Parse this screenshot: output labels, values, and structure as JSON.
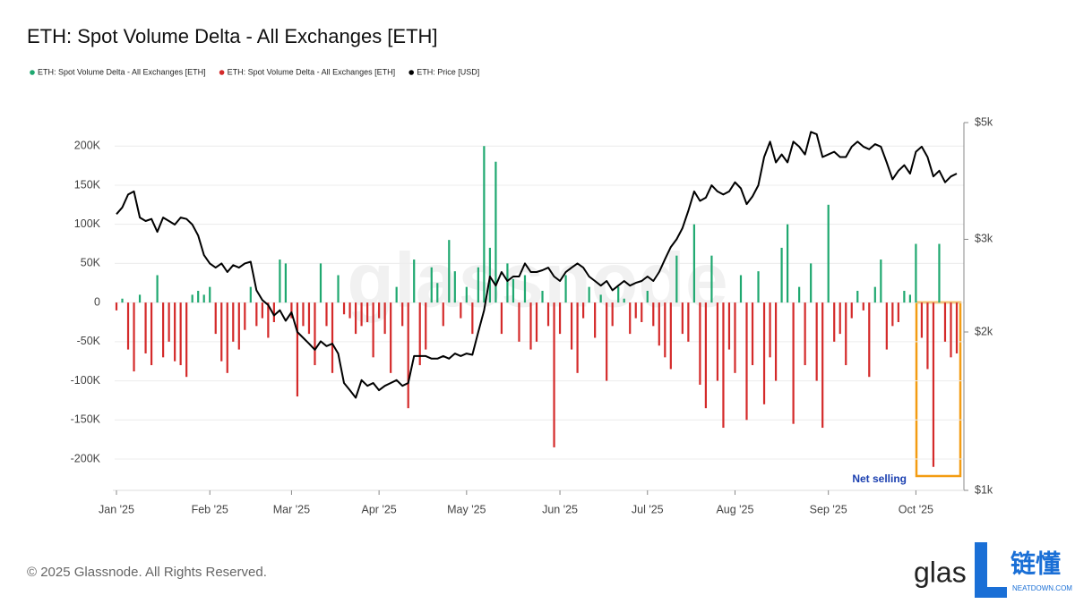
{
  "chart_data": {
    "type": "bar",
    "title": "ETH: Spot Volume Delta - All Exchanges [ETH]",
    "watermark": "glassnode",
    "annotation": "Net selling",
    "footer": "© 2025 Glassnode. All Rights Reserved.",
    "logo": {
      "brand": "glas",
      "mark": "链懂",
      "site": "NEATDOWN.COM"
    },
    "categories": [
      "Jan '25",
      null,
      null,
      null,
      null,
      null,
      null,
      null,
      null,
      null,
      null,
      null,
      null,
      null,
      null,
      null,
      "Feb '25",
      null,
      null,
      null,
      null,
      null,
      null,
      null,
      null,
      null,
      null,
      null,
      null,
      null,
      "Mar '25",
      null,
      null,
      null,
      null,
      null,
      null,
      null,
      null,
      null,
      null,
      null,
      null,
      null,
      null,
      "Apr '25",
      null,
      null,
      null,
      null,
      null,
      null,
      null,
      null,
      null,
      null,
      null,
      null,
      null,
      null,
      "May '25",
      null,
      null,
      null,
      null,
      null,
      null,
      null,
      null,
      null,
      null,
      null,
      null,
      null,
      null,
      null,
      "Jun '25",
      null,
      null,
      null,
      null,
      null,
      null,
      null,
      null,
      null,
      null,
      null,
      null,
      null,
      null,
      "Jul '25",
      null,
      null,
      null,
      null,
      null,
      null,
      null,
      null,
      null,
      null,
      null,
      null,
      null,
      null,
      "Aug '25",
      null,
      null,
      null,
      null,
      null,
      null,
      null,
      null,
      null,
      null,
      null,
      null,
      null,
      null,
      null,
      "Sep '25",
      null,
      null,
      null,
      null,
      null,
      null,
      null,
      null,
      null,
      null,
      null,
      null,
      null,
      null,
      "Oct '25",
      null,
      null,
      null,
      null,
      null,
      null,
      null
    ],
    "series": [
      {
        "name": "ETH: Spot Volume Delta - All Exchanges [ETH]",
        "color": "#1fa870",
        "values": [
          null,
          5000,
          null,
          null,
          10000,
          null,
          null,
          35000,
          null,
          null,
          null,
          null,
          null,
          10000,
          15000,
          10000,
          20000,
          null,
          null,
          null,
          null,
          null,
          null,
          20000,
          null,
          null,
          null,
          null,
          55000,
          50000,
          null,
          null,
          null,
          null,
          null,
          50000,
          null,
          null,
          35000,
          null,
          null,
          null,
          null,
          null,
          null,
          null,
          null,
          null,
          20000,
          null,
          null,
          55000,
          null,
          null,
          45000,
          25000,
          null,
          80000,
          40000,
          null,
          20000,
          null,
          45000,
          200000,
          70000,
          180000,
          null,
          50000,
          30000,
          null,
          35000,
          null,
          null,
          15000,
          null,
          null,
          null,
          35000,
          null,
          null,
          null,
          20000,
          null,
          10000,
          null,
          null,
          20000,
          5000,
          null,
          null,
          null,
          15000,
          null,
          null,
          null,
          null,
          60000,
          null,
          null,
          100000,
          null,
          null,
          60000,
          null,
          null,
          null,
          null,
          35000,
          null,
          null,
          40000,
          null,
          null,
          null,
          70000,
          100000,
          null,
          20000,
          null,
          50000,
          null,
          null,
          125000,
          null,
          null,
          null,
          null,
          15000,
          null,
          null,
          20000,
          55000,
          null,
          null,
          null,
          15000,
          10000,
          75000,
          null,
          null,
          null,
          75000,
          null,
          null,
          null
        ]
      },
      {
        "name": "ETH: Spot Volume Delta - All Exchanges [ETH]",
        "color": "#d42a2a",
        "values": [
          -10000,
          null,
          -60000,
          -88000,
          null,
          -65000,
          -80000,
          null,
          -70000,
          -50000,
          -75000,
          -80000,
          -95000,
          null,
          null,
          null,
          null,
          -40000,
          -75000,
          -90000,
          -50000,
          -60000,
          -35000,
          null,
          -30000,
          -20000,
          -45000,
          -25000,
          null,
          null,
          -20000,
          -120000,
          -30000,
          -40000,
          -80000,
          null,
          -30000,
          -90000,
          null,
          -15000,
          -20000,
          -40000,
          -30000,
          -25000,
          -70000,
          -20000,
          -40000,
          -90000,
          null,
          -30000,
          -135000,
          null,
          -80000,
          -60000,
          null,
          null,
          -30000,
          null,
          null,
          -20000,
          null,
          -40000,
          null,
          null,
          null,
          null,
          -40000,
          null,
          null,
          -50000,
          null,
          -60000,
          -50000,
          null,
          -30000,
          -185000,
          -40000,
          null,
          -60000,
          -90000,
          -20000,
          null,
          -45000,
          null,
          -100000,
          -30000,
          null,
          null,
          -40000,
          -20000,
          -25000,
          null,
          -30000,
          -55000,
          -70000,
          -85000,
          null,
          -40000,
          -50000,
          null,
          -105000,
          -135000,
          null,
          -100000,
          -160000,
          -60000,
          -90000,
          null,
          -150000,
          -80000,
          null,
          -130000,
          -70000,
          -100000,
          null,
          null,
          -155000,
          null,
          -80000,
          null,
          -100000,
          -160000,
          null,
          -50000,
          -40000,
          -80000,
          -20000,
          null,
          -10000,
          -95000,
          null,
          null,
          -60000,
          -30000,
          -25000,
          null,
          null,
          null,
          -45000,
          -85000,
          -210000,
          null,
          -50000,
          -70000,
          -65000
        ]
      },
      {
        "name": "ETH: Price [USD]",
        "color": "#000000",
        "axis": "y2",
        "type": "line",
        "values": [
          3350,
          3450,
          3650,
          3700,
          3300,
          3250,
          3280,
          3100,
          3300,
          3250,
          3200,
          3300,
          3280,
          3200,
          3050,
          2800,
          2700,
          2650,
          2700,
          2600,
          2680,
          2650,
          2700,
          2720,
          2400,
          2300,
          2250,
          2150,
          2200,
          2100,
          2180,
          2000,
          1950,
          1900,
          1850,
          1920,
          1880,
          1900,
          1820,
          1600,
          1550,
          1500,
          1620,
          1580,
          1600,
          1550,
          1580,
          1600,
          1620,
          1580,
          1600,
          1800,
          1800,
          1800,
          1780,
          1780,
          1800,
          1780,
          1820,
          1800,
          1820,
          1810,
          2000,
          2200,
          2550,
          2450,
          2600,
          2500,
          2550,
          2550,
          2700,
          2600,
          2600,
          2620,
          2650,
          2550,
          2500,
          2600,
          2650,
          2700,
          2650,
          2550,
          2500,
          2450,
          2500,
          2400,
          2450,
          2500,
          2450,
          2480,
          2500,
          2550,
          2500,
          2600,
          2750,
          2900,
          3000,
          3150,
          3400,
          3700,
          3550,
          3600,
          3800,
          3700,
          3650,
          3700,
          3850,
          3750,
          3500,
          3620,
          3800,
          4300,
          4600,
          4200,
          4350,
          4200,
          4600,
          4500,
          4350,
          4800,
          4750,
          4300,
          4350,
          4400,
          4300,
          4300,
          4500,
          4600,
          4500,
          4450,
          4550,
          4500,
          4200,
          3900,
          4050,
          4150,
          4000,
          4400,
          4500,
          4300,
          3950,
          4050,
          3850,
          3950,
          4000
        ]
      }
    ],
    "ylim": [
      -240000,
      230000
    ],
    "yticks": [
      {
        "value": -200000,
        "label": "-200K"
      },
      {
        "value": -150000,
        "label": "-150K"
      },
      {
        "value": -100000,
        "label": "-100K"
      },
      {
        "value": -50000,
        "label": "-50K"
      },
      0,
      {
        "value": 50000,
        "label": "50K"
      },
      {
        "value": 100000,
        "label": "100K"
      },
      {
        "value": 150000,
        "label": "150K"
      },
      {
        "value": 200000,
        "label": "200K"
      }
    ],
    "y2lim": [
      1000,
      5000
    ],
    "y2scale": "log",
    "y2ticks": [
      {
        "value": 1000,
        "label": "$1k"
      },
      {
        "value": 2000,
        "label": "$2k"
      },
      {
        "value": 3000,
        "label": "$3k"
      },
      {
        "value": 5000,
        "label": "$5k"
      }
    ],
    "grid": true,
    "legend": "top-left"
  }
}
